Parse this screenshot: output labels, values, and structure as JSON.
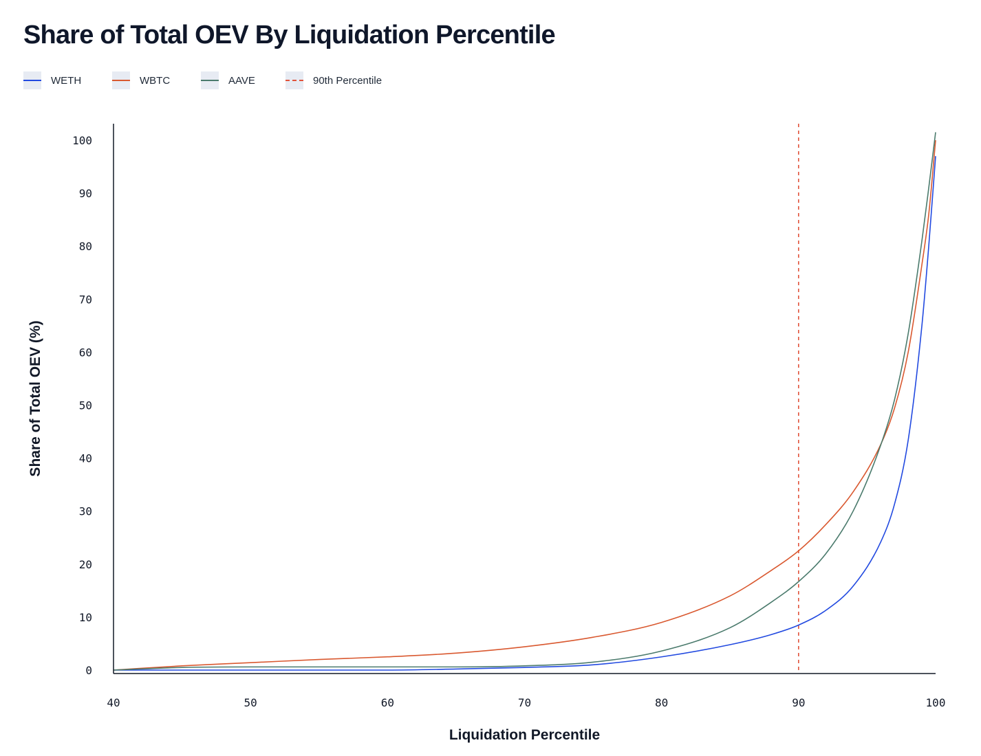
{
  "chart_data": {
    "type": "line",
    "title": "Share of Total OEV By Liquidation Percentile",
    "xlabel": "Liquidation Percentile",
    "ylabel": "Share of Total OEV (%)",
    "xlim": [
      40,
      100
    ],
    "ylim": [
      0,
      100
    ],
    "xticks": [
      "40",
      "50",
      "60",
      "70",
      "80",
      "90",
      "100"
    ],
    "yticks": [
      "0",
      "10",
      "20",
      "30",
      "40",
      "50",
      "60",
      "70",
      "80",
      "90",
      "100"
    ],
    "x": [
      40,
      45,
      50,
      55,
      60,
      65,
      70,
      75,
      80,
      85,
      88,
      90,
      92,
      94,
      96,
      97,
      98,
      99,
      99.5,
      100
    ],
    "series": [
      {
        "name": "WETH",
        "color": "#2149e0",
        "values": [
          0,
          0,
          0,
          0,
          0,
          0.2,
          0.5,
          1.0,
          2.5,
          4.8,
          6.7,
          8.5,
          11.3,
          15.9,
          24.2,
          31.3,
          43.4,
          65.0,
          80.0,
          97.0
        ]
      },
      {
        "name": "WBTC",
        "color": "#d9582f",
        "values": [
          0,
          0.8,
          1.4,
          2.0,
          2.5,
          3.2,
          4.4,
          6.2,
          9.0,
          14.0,
          18.8,
          22.5,
          27.5,
          33.7,
          42.6,
          49.4,
          60.0,
          76.5,
          86.0,
          100
        ]
      },
      {
        "name": "AAVE",
        "color": "#4a7a6c",
        "values": [
          0,
          0.5,
          0.6,
          0.6,
          0.6,
          0.6,
          0.8,
          1.5,
          3.6,
          8.0,
          12.8,
          16.7,
          22.0,
          30.1,
          42.5,
          51.0,
          63.5,
          81.0,
          91.0,
          101.5
        ]
      }
    ],
    "reference_line": {
      "name": "90th Percentile",
      "x": 90,
      "color": "#e1523b",
      "style": "dashed"
    }
  },
  "legend": [
    {
      "label": "WETH",
      "color": "#2149e0"
    },
    {
      "label": "WBTC",
      "color": "#d9582f"
    },
    {
      "label": "AAVE",
      "color": "#4a7a6c"
    },
    {
      "label": "90th Percentile",
      "color": "#e1523b"
    }
  ]
}
